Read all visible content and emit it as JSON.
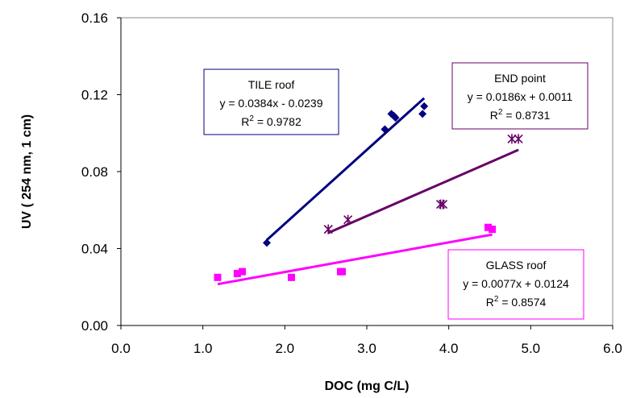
{
  "chart_data": {
    "type": "scatter",
    "xlabel": "DOC (mg C/L)",
    "ylabel": "UV ( 254 nm, 1 cm)",
    "xlim": [
      0,
      6
    ],
    "ylim": [
      0,
      0.16
    ],
    "x_ticks": [
      "0.0",
      "1.0",
      "2.0",
      "3.0",
      "4.0",
      "5.0",
      "6.0"
    ],
    "y_ticks": [
      "0.00",
      "0.04",
      "0.08",
      "0.12",
      "0.16"
    ],
    "grid": false,
    "series": [
      {
        "name": "TILE roof",
        "color": "#000080",
        "marker": "diamond",
        "points": [
          [
            1.78,
            0.043
          ],
          [
            3.22,
            0.102
          ],
          [
            3.3,
            0.11
          ],
          [
            3.33,
            0.109
          ],
          [
            3.35,
            0.108
          ],
          [
            3.68,
            0.11
          ],
          [
            3.7,
            0.114
          ]
        ],
        "trend": {
          "slope": 0.0384,
          "intercept": -0.0239,
          "x_range": [
            1.78,
            3.7
          ]
        },
        "box": {
          "name": "TILE  roof",
          "equation": "y = 0.0384x - 0.0239",
          "r2_prefix": "R",
          "r2_exp": "2",
          "r2_value": " = 0.9782"
        }
      },
      {
        "name": "END point",
        "color": "#660066",
        "marker": "asterisk",
        "points": [
          [
            2.53,
            0.05
          ],
          [
            2.77,
            0.055
          ],
          [
            3.9,
            0.063
          ],
          [
            3.93,
            0.063
          ],
          [
            4.77,
            0.097
          ],
          [
            4.85,
            0.097
          ]
        ],
        "trend": {
          "slope": 0.0186,
          "intercept": 0.0011,
          "x_range": [
            2.53,
            4.85
          ]
        },
        "box": {
          "name": "END point",
          "equation": "y = 0.0186x + 0.0011",
          "r2_prefix": "R",
          "r2_exp": "2",
          "r2_value": " = 0.8731"
        }
      },
      {
        "name": "GLASS roof",
        "color": "#ff00ff",
        "marker": "square",
        "points": [
          [
            1.18,
            0.025
          ],
          [
            1.42,
            0.027
          ],
          [
            1.48,
            0.028
          ],
          [
            2.08,
            0.025
          ],
          [
            2.68,
            0.028
          ],
          [
            2.7,
            0.028
          ],
          [
            4.48,
            0.051
          ],
          [
            4.53,
            0.05
          ]
        ],
        "trend": {
          "slope": 0.0077,
          "intercept": 0.0124,
          "x_range": [
            1.18,
            4.53
          ]
        },
        "box": {
          "name": "GLASS  roof",
          "equation": "y = 0.0077x + 0.0124",
          "r2_prefix": "R",
          "r2_exp": "2",
          "r2_value": " = 0.8574"
        }
      }
    ]
  }
}
